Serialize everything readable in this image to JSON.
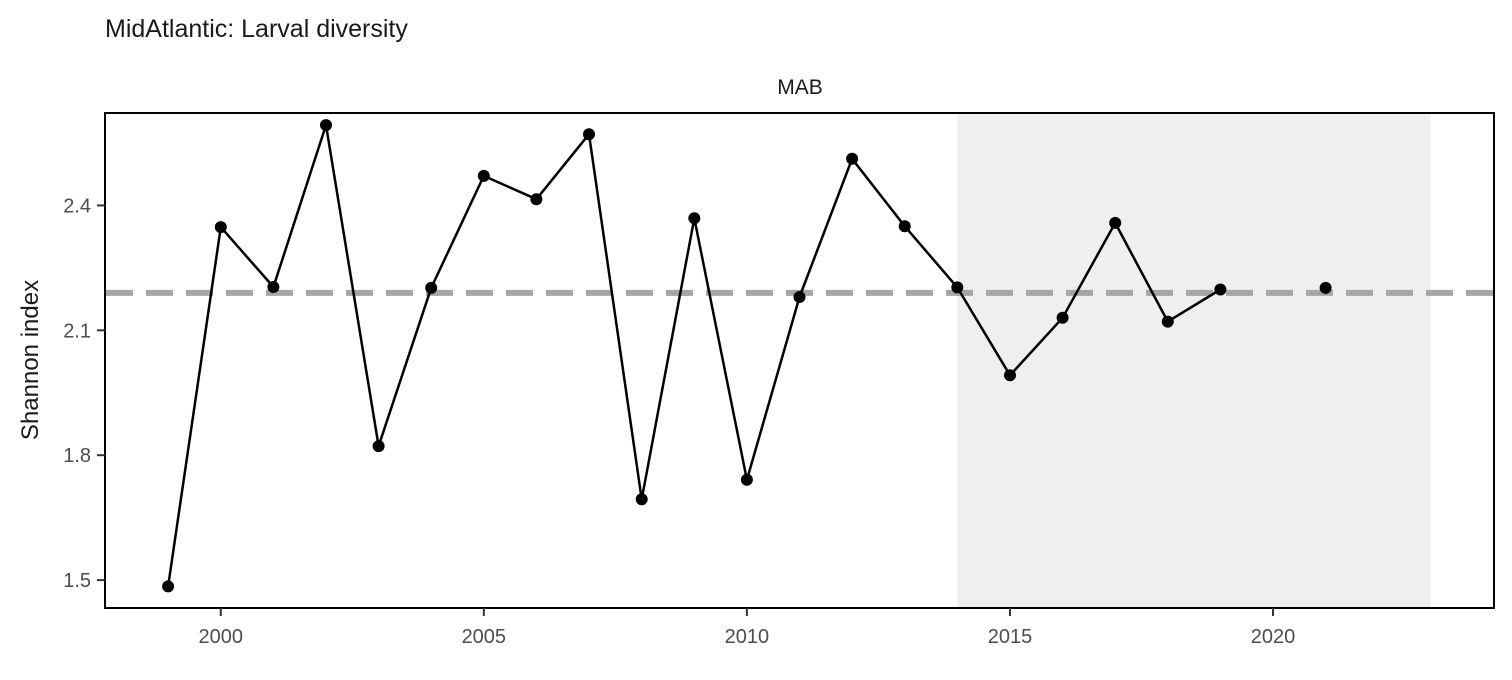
{
  "chart_data": {
    "type": "line",
    "title": "MidAtlantic: Larval diversity",
    "facet_label": "MAB",
    "xlabel": "",
    "ylabel": "Shannon index",
    "xlim": [
      1997.8,
      2024.2
    ],
    "ylim": [
      1.433,
      2.622
    ],
    "x_ticks": [
      2000,
      2005,
      2010,
      2015,
      2020
    ],
    "y_ticks": [
      1.5,
      1.8,
      2.1,
      2.4
    ],
    "y_tick_labels": [
      "1.5",
      "1.8",
      "2.1",
      "2.4"
    ],
    "grid": false,
    "reference_line": {
      "y": 2.19,
      "style": "dashed",
      "color": "#a6a6a6"
    },
    "highlight_range": {
      "x": [
        2014,
        2023
      ],
      "color": "#efefef"
    },
    "line_color": "#000000",
    "point_color": "#000000",
    "series": [
      {
        "x": [
          1999,
          2000,
          2001,
          2002,
          2003,
          2004,
          2005,
          2006,
          2007,
          2008,
          2009,
          2010,
          2011,
          2012,
          2013,
          2014,
          2015,
          2016,
          2017,
          2018,
          2019,
          2021
        ],
        "values": [
          1.485,
          2.348,
          2.204,
          2.593,
          1.822,
          2.202,
          2.471,
          2.415,
          2.571,
          1.694,
          2.369,
          1.741,
          2.18,
          2.512,
          2.35,
          2.203,
          1.992,
          2.13,
          2.358,
          2.121,
          2.198,
          2.202
        ]
      }
    ],
    "line_segments": [
      [
        0,
        20
      ]
    ]
  }
}
